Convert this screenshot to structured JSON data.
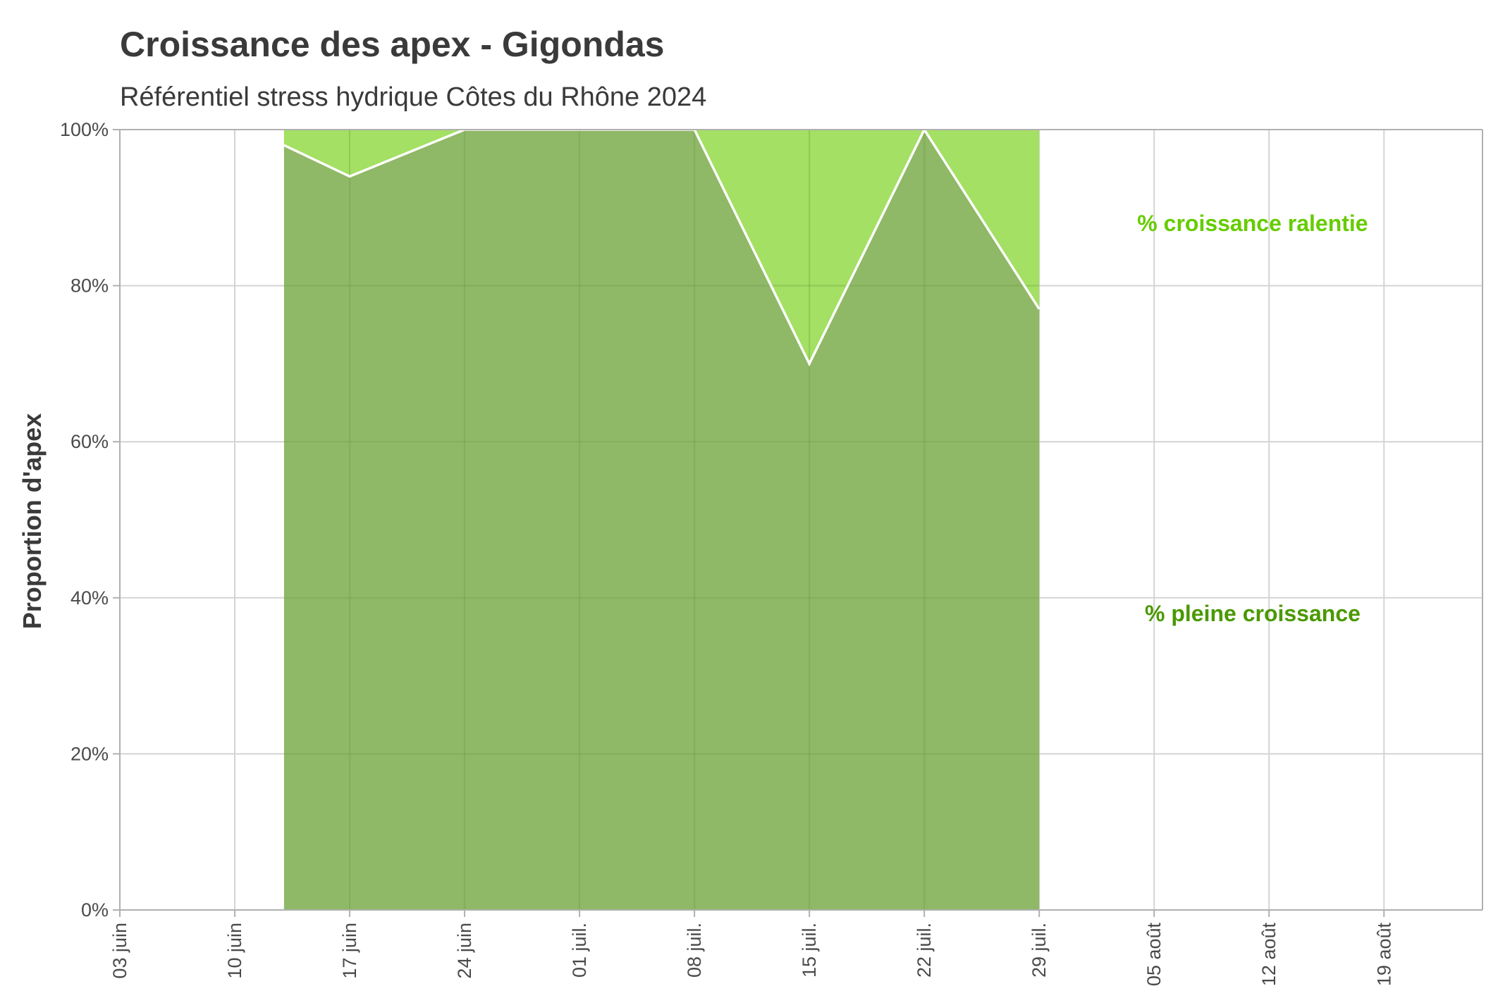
{
  "chart_data": {
    "type": "area",
    "title": "Croissance des apex - Gigondas",
    "subtitle": "Référentiel stress hydrique Côtes du Rhône 2024",
    "xlabel": "",
    "ylabel": "Proportion d'apex",
    "x_dates": [
      "2024-06-13",
      "2024-06-17",
      "2024-06-24",
      "2024-07-08",
      "2024-07-15",
      "2024-07-22",
      "2024-07-29"
    ],
    "xlim": [
      "2024-06-03",
      "2024-08-25"
    ],
    "ylim": [
      0,
      100
    ],
    "x_tick_dates": [
      "2024-06-03",
      "2024-06-10",
      "2024-06-17",
      "2024-06-24",
      "2024-07-01",
      "2024-07-08",
      "2024-07-15",
      "2024-07-22",
      "2024-07-29",
      "2024-08-05",
      "2024-08-12",
      "2024-08-19"
    ],
    "x_tick_labels": [
      "03 juin",
      "10 juin",
      "17 juin",
      "24 juin",
      "01 juil.",
      "08 juil.",
      "15 juil.",
      "22 juil.",
      "29 juil.",
      "05 août",
      "12 août",
      "19 août"
    ],
    "y_ticks": [
      0,
      20,
      40,
      60,
      80,
      100
    ],
    "y_tick_labels": [
      "0%",
      "20%",
      "40%",
      "60%",
      "80%",
      "100%"
    ],
    "grid": true,
    "stacked": true,
    "series": [
      {
        "values": [
          98,
          94,
          100,
          100,
          70,
          100,
          77
        ],
        "color": "#8fb867"
      },
      {
        "values": [
          2,
          6,
          0,
          0,
          30,
          0,
          23
        ],
        "color": "#a3e063"
      }
    ],
    "annotations": [
      {
        "text": "%  croissance ralentie",
        "x": "2024-08-11",
        "y": 88,
        "color": "#66cc00"
      },
      {
        "text": "% pleine croissance",
        "x": "2024-08-11",
        "y": 38,
        "color": "#4a9900"
      }
    ],
    "line_color": "#ffffff"
  }
}
